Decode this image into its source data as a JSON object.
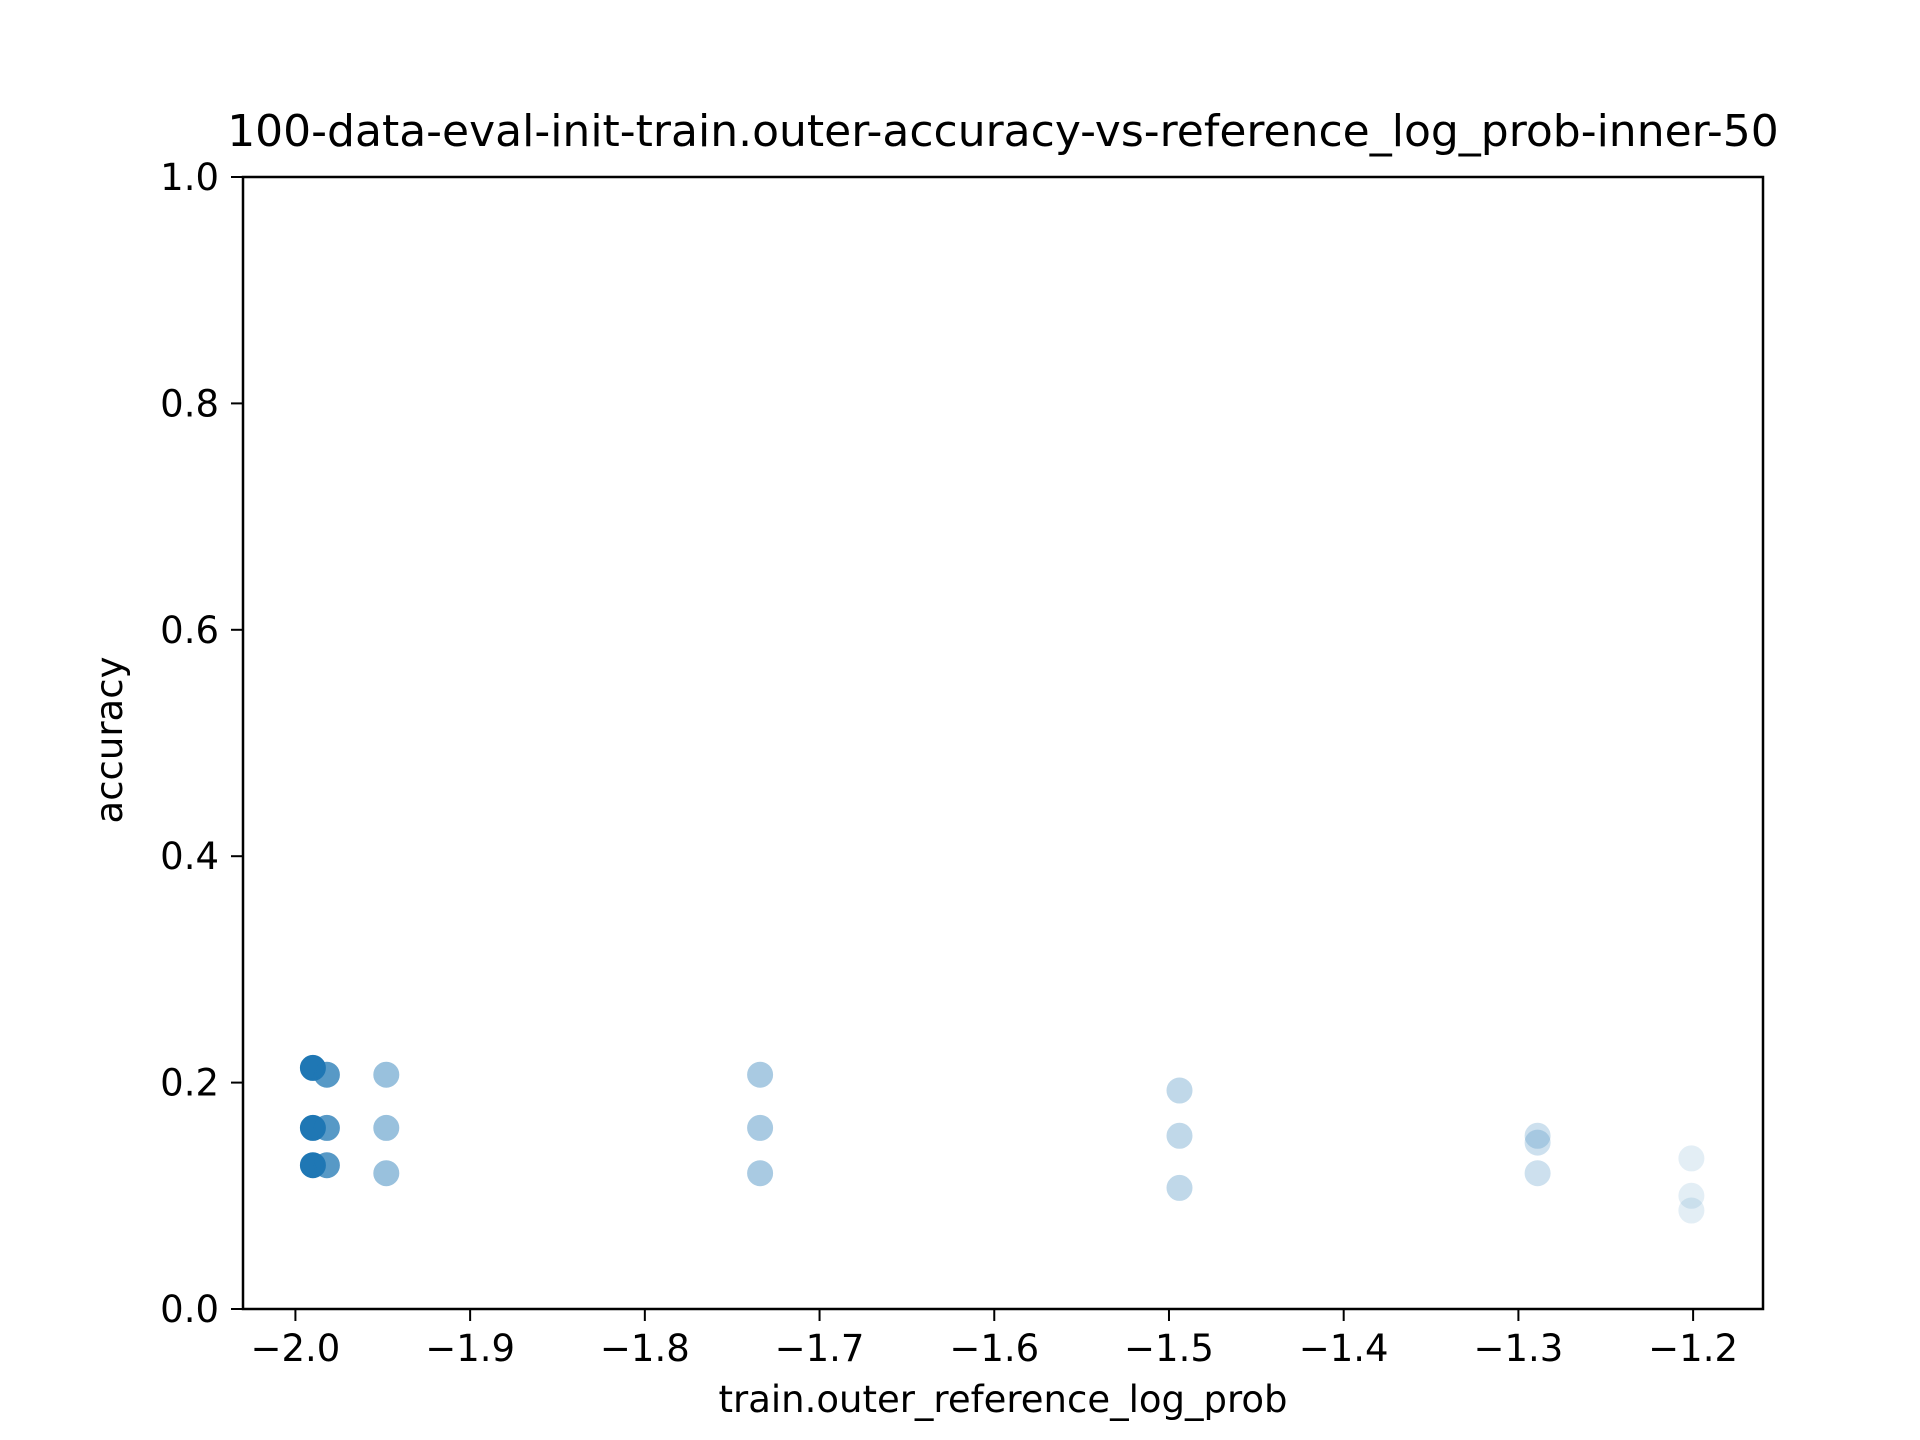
{
  "chart_data": {
    "type": "scatter",
    "title": "100-data-eval-init-train.outer-accuracy-vs-reference_log_prob-inner-50",
    "xlabel": "train.outer_reference_log_prob",
    "ylabel": "accuracy",
    "xlim": [
      -2.03,
      -1.16
    ],
    "ylim": [
      0.0,
      1.0
    ],
    "xticks": [
      -2.0,
      -1.9,
      -1.8,
      -1.7,
      -1.6,
      -1.5,
      -1.4,
      -1.3,
      -1.2
    ],
    "xtick_labels": [
      "−2.0",
      "−1.9",
      "−1.8",
      "−1.7",
      "−1.6",
      "−1.5",
      "−1.4",
      "−1.3",
      "−1.2"
    ],
    "yticks": [
      0.0,
      0.2,
      0.4,
      0.6,
      0.8,
      1.0
    ],
    "ytick_labels": [
      "0.0",
      "0.2",
      "0.4",
      "0.6",
      "0.8",
      "1.0"
    ],
    "grid": false,
    "legend": "none",
    "marker_color": "#1f77b4",
    "groups": [
      {
        "x": -1.99,
        "opacity": 1.0,
        "y": [
          0.213,
          0.16,
          0.127
        ]
      },
      {
        "x": -1.982,
        "opacity": 0.75,
        "y": [
          0.207,
          0.16,
          0.127
        ]
      },
      {
        "x": -1.948,
        "opacity": 0.45,
        "y": [
          0.207,
          0.16,
          0.12
        ]
      },
      {
        "x": -1.734,
        "opacity": 0.38,
        "y": [
          0.207,
          0.16,
          0.12
        ]
      },
      {
        "x": -1.494,
        "opacity": 0.28,
        "y": [
          0.193,
          0.153,
          0.107
        ]
      },
      {
        "x": -1.289,
        "opacity": 0.22,
        "y": [
          0.153,
          0.147,
          0.12
        ]
      },
      {
        "x": -1.201,
        "opacity": 0.12,
        "y": [
          0.133,
          0.1,
          0.087
        ]
      }
    ]
  }
}
